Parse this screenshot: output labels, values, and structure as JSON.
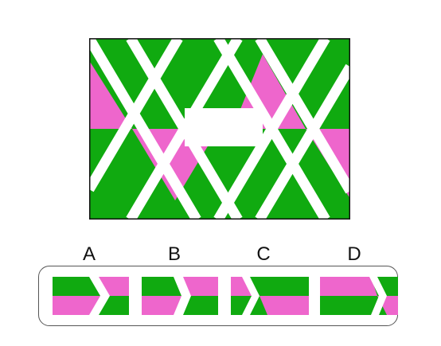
{
  "colors": {
    "green": "#10aa10",
    "pink": "#ee66cc",
    "white": "#ffffff",
    "border": "#111111"
  },
  "options": [
    {
      "label": "A"
    },
    {
      "label": "B"
    },
    {
      "label": "C"
    },
    {
      "label": "D"
    }
  ]
}
